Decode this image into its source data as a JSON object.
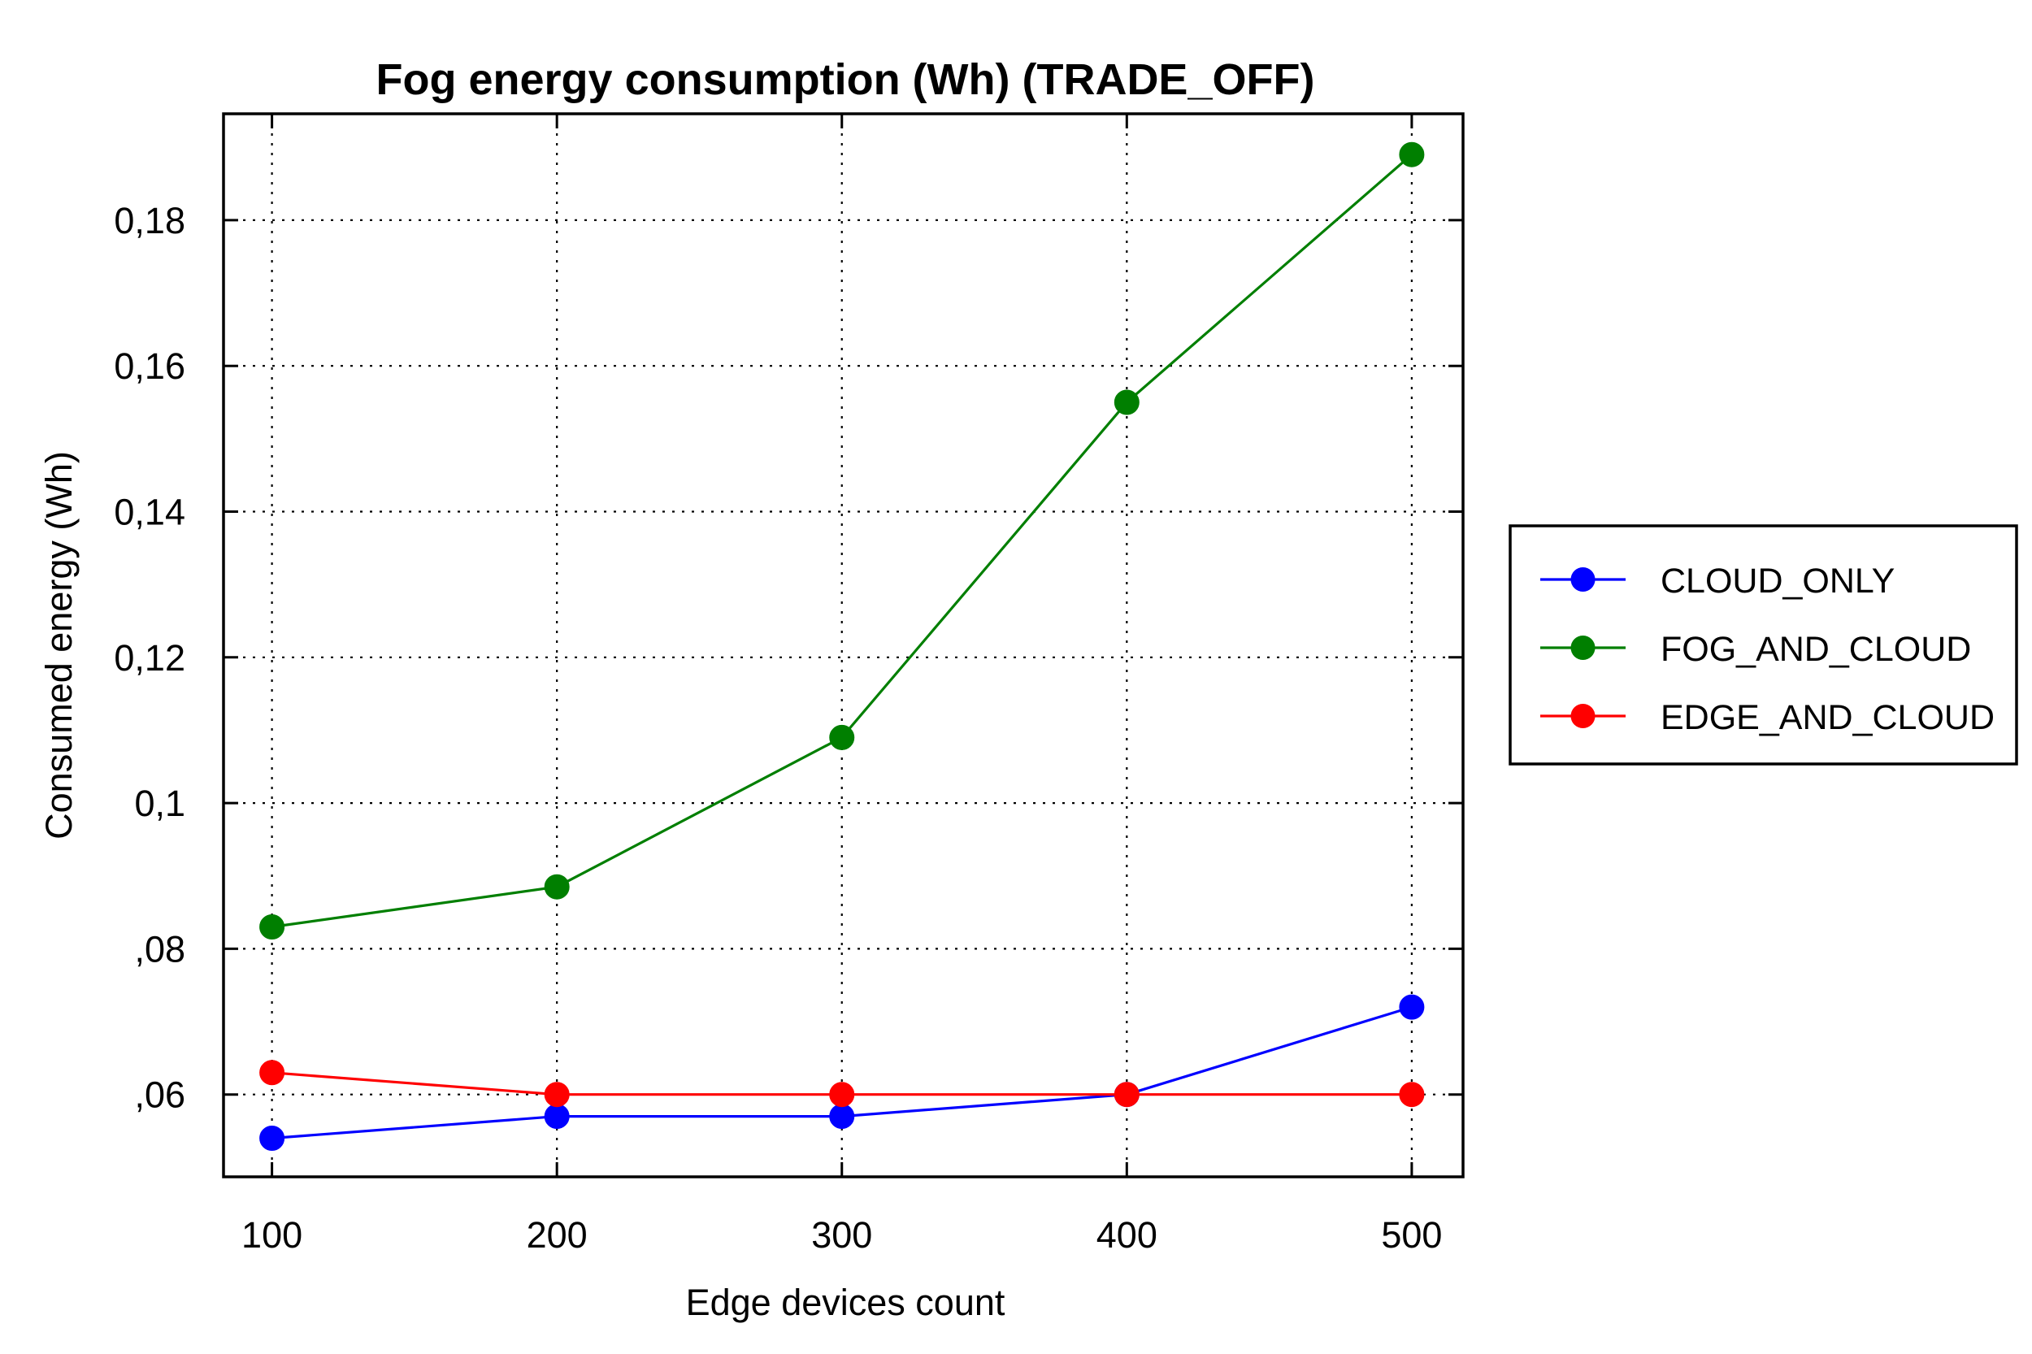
{
  "chart_data": {
    "type": "line",
    "title": "Fog energy consumption (Wh) (TRADE_OFF)",
    "xlabel": "Edge devices count",
    "ylabel": "Consumed energy (Wh)",
    "x": [
      100,
      200,
      300,
      400,
      500
    ],
    "x_tick_labels": [
      "100",
      "200",
      "300",
      "400",
      "500"
    ],
    "xlim": [
      83,
      518
    ],
    "ylim": [
      0.0487,
      0.1946
    ],
    "y_ticks": [
      0.06,
      0.08,
      0.1,
      0.12,
      0.14,
      0.16,
      0.18
    ],
    "y_tick_labels": [
      ",06",
      ",08",
      "0,1",
      "0,12",
      "0,14",
      "0,16",
      "0,18"
    ],
    "grid": true,
    "legend_position": "right-outside",
    "series": [
      {
        "name": "CLOUD_ONLY",
        "color": "#0000ff",
        "values": [
          0.054,
          0.057,
          0.057,
          0.06,
          0.072
        ]
      },
      {
        "name": "FOG_AND_CLOUD",
        "color": "#007f00",
        "values": [
          0.083,
          0.0885,
          0.109,
          0.155,
          0.189
        ]
      },
      {
        "name": "EDGE_AND_CLOUD",
        "color": "#ff0000",
        "values": [
          0.063,
          0.06,
          0.06,
          0.06,
          0.06
        ]
      }
    ]
  }
}
